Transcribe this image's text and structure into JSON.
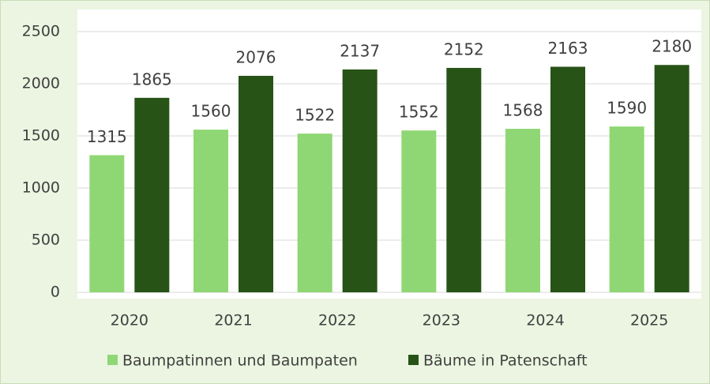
{
  "chart_data": {
    "type": "bar",
    "categories": [
      "2020",
      "2021",
      "2022",
      "2023",
      "2024",
      "2025"
    ],
    "series": [
      {
        "name": "Baumpatinnen und Baumpaten",
        "color": "#8fd774",
        "values": [
          1315,
          1560,
          1522,
          1552,
          1568,
          1590
        ]
      },
      {
        "name": "Bäume in Patenschaft",
        "color": "#275317",
        "values": [
          1865,
          2076,
          2137,
          2152,
          2163,
          2180
        ]
      }
    ],
    "ylim": [
      0,
      2500
    ],
    "yticks": [
      0,
      500,
      1000,
      1500,
      2000,
      2500
    ],
    "grid": true,
    "legend": "bottom"
  }
}
